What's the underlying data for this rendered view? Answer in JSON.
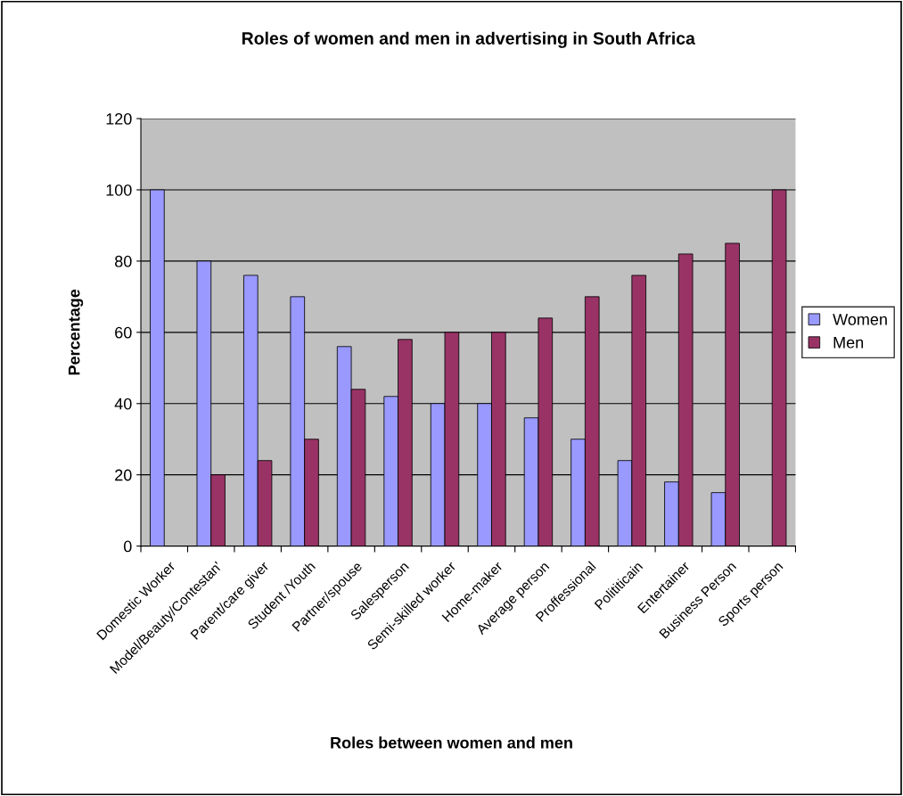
{
  "chart_data": {
    "type": "bar",
    "title": "Roles of women and men in advertising in South Africa",
    "xlabel": "Roles between women and men",
    "ylabel": "Percentage",
    "categories": [
      "Domestic Worker",
      "Model/Beauty/Contestan'",
      "Parent/care giver",
      "Student /Youth",
      "Partner/spouse",
      "Salesperson",
      "Semi-skilled worker",
      "Home-maker",
      "Average person",
      "Proffessional",
      "Polititicain",
      "Entertainer",
      "Business Person",
      "Sports person"
    ],
    "series": [
      {
        "name": "Women",
        "color": "#9999ff",
        "values": [
          100,
          80,
          76,
          70,
          56,
          42,
          40,
          40,
          36,
          30,
          24,
          18,
          15,
          null
        ]
      },
      {
        "name": "Men",
        "color": "#993366",
        "values": [
          null,
          20,
          24,
          30,
          44,
          58,
          60,
          60,
          64,
          70,
          76,
          82,
          85,
          100
        ]
      }
    ],
    "ylim": [
      0,
      120
    ],
    "yticks": [
      0,
      20,
      40,
      60,
      80,
      100,
      120
    ],
    "grid": "y",
    "legend": "right"
  }
}
